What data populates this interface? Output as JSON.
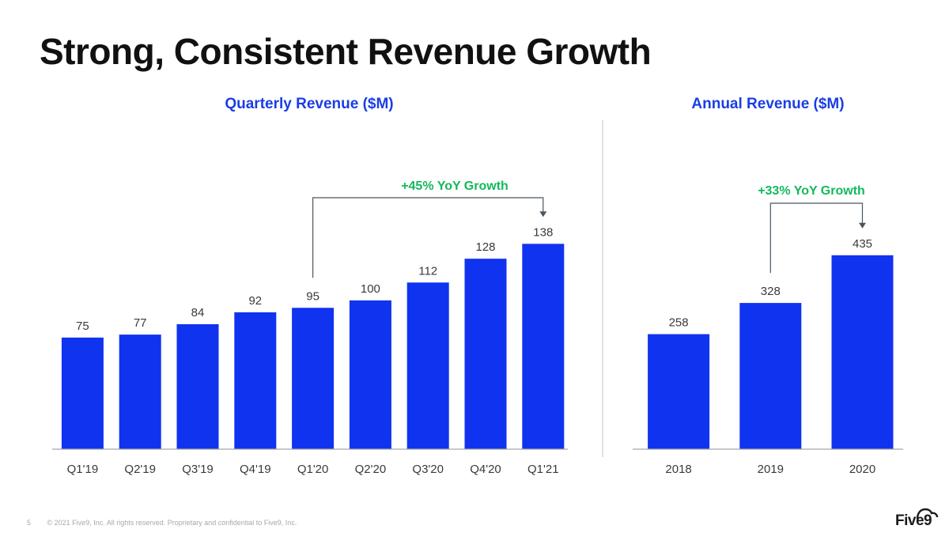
{
  "page": {
    "title": "Strong, Consistent Revenue Growth",
    "page_number": "5",
    "footer": "© 2021 Five9, Inc. All rights reserved. Proprietary and confidential to Five9, Inc.",
    "logo_text": "Five9"
  },
  "colors": {
    "bar": "#1033f0",
    "title_blue": "#1a3de6",
    "growth_green": "#12b95a",
    "text": "#3a3a3a",
    "axis": "#a6a6a6",
    "bracket": "#4a5560"
  },
  "chart_data": [
    {
      "type": "bar",
      "title": "Quarterly Revenue ($M)",
      "categories": [
        "Q1'19",
        "Q2'19",
        "Q3'19",
        "Q4'19",
        "Q1'20",
        "Q2'20",
        "Q3'20",
        "Q4'20",
        "Q1'21"
      ],
      "values": [
        75,
        77,
        84,
        92,
        95,
        100,
        112,
        128,
        138
      ],
      "data_labels": [
        "75",
        "77",
        "84",
        "92",
        "95",
        "100",
        "112",
        "128",
        "138"
      ],
      "xlabel": "",
      "ylabel": "",
      "ylim": [
        0,
        152
      ],
      "annotation": {
        "text": "+45% YoY Growth",
        "from": "Q1'20",
        "to": "Q1'21"
      }
    },
    {
      "type": "bar",
      "title": "Annual Revenue ($M)",
      "categories": [
        "2018",
        "2019",
        "2020"
      ],
      "values": [
        258,
        328,
        435
      ],
      "data_labels": [
        "258",
        "328",
        "435"
      ],
      "xlabel": "",
      "ylabel": "",
      "ylim": [
        0,
        502
      ],
      "annotation": {
        "text": "+33% YoY Growth",
        "from": "2019",
        "to": "2020"
      }
    }
  ]
}
